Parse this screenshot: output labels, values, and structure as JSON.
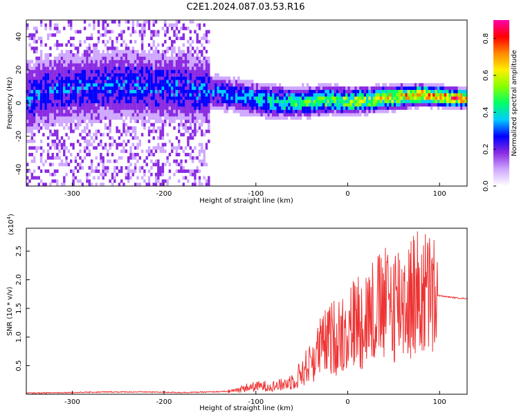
{
  "title": "C2E1.2024.087.03.53.R16",
  "chart_data": [
    {
      "type": "heatmap",
      "xlabel": "Height of straight line (km)",
      "ylabel": "Frequency (Hz)",
      "xlim": [
        -350,
        130
      ],
      "ylim": [
        -50,
        50
      ],
      "x_ticks": [
        "-300",
        "-200",
        "-100",
        "0",
        "100"
      ],
      "x_tick_values": [
        -300,
        -200,
        -100,
        0,
        100
      ],
      "y_ticks": [
        "40",
        "20",
        "0",
        "-20",
        "-40"
      ],
      "y_tick_values": [
        40,
        20,
        0,
        -20,
        -40
      ],
      "colorbar": {
        "label": "Normalized spectral amplitude",
        "range": [
          0,
          0.9
        ],
        "ticks": [
          "0.0",
          "0.2",
          "0.4",
          "0.6",
          "0.8"
        ],
        "tick_values": [
          0.0,
          0.2,
          0.4,
          0.6,
          0.8
        ],
        "colors": [
          "#ffffff",
          "#cfa8ff",
          "#8a2be2",
          "#0000ff",
          "#00ccff",
          "#00ff66",
          "#88ff00",
          "#ffee00",
          "#ff8800",
          "#ff0000",
          "#ff00aa"
        ]
      },
      "ridge": {
        "x": [
          -340,
          -300,
          -260,
          -220,
          -180,
          -150,
          -120,
          -100,
          -80,
          -60,
          -40,
          -20,
          0,
          20,
          40,
          60,
          80,
          100,
          120
        ],
        "y": [
          5,
          8,
          10,
          9,
          8,
          6,
          3,
          1,
          0,
          -1,
          0,
          1,
          0,
          1,
          2,
          3,
          4,
          3,
          2
        ]
      }
    },
    {
      "type": "line",
      "xlabel": "Height of straight line (km)",
      "ylabel": "SNR (10 * v/v)",
      "y_multiplier": "(x10",
      "y_multiplier_exp": "4",
      "xlim": [
        -350,
        130
      ],
      "ylim": [
        0,
        2.9
      ],
      "x_ticks": [
        "-300",
        "-200",
        "-100",
        "0",
        "100"
      ],
      "x_tick_values": [
        -300,
        -200,
        -100,
        0,
        100
      ],
      "y_ticks": [
        "0.5",
        "1.0",
        "1.5",
        "2.0",
        "2.5"
      ],
      "y_tick_values": [
        0.5,
        1.0,
        1.5,
        2.0,
        2.5
      ],
      "color": "#ee3333",
      "series": [
        {
          "x": [
            -350,
            -300,
            -260,
            -220,
            -180,
            -150,
            -130,
            -120,
            -110,
            -100,
            -90,
            -80,
            -70,
            -60,
            -50,
            -40,
            -30,
            -20,
            -10,
            0,
            10,
            20,
            30,
            40,
            50,
            60,
            70,
            80,
            90,
            95,
            100,
            110,
            120,
            130
          ],
          "y": [
            0.02,
            0.03,
            0.04,
            0.04,
            0.03,
            0.04,
            0.05,
            0.08,
            0.12,
            0.14,
            0.15,
            0.15,
            0.18,
            0.25,
            0.4,
            0.6,
            0.85,
            1.0,
            1.1,
            1.2,
            1.35,
            1.45,
            1.55,
            1.6,
            1.7,
            1.75,
            1.8,
            1.85,
            1.8,
            1.75,
            1.72,
            1.7,
            1.68,
            1.67
          ]
        }
      ]
    }
  ]
}
